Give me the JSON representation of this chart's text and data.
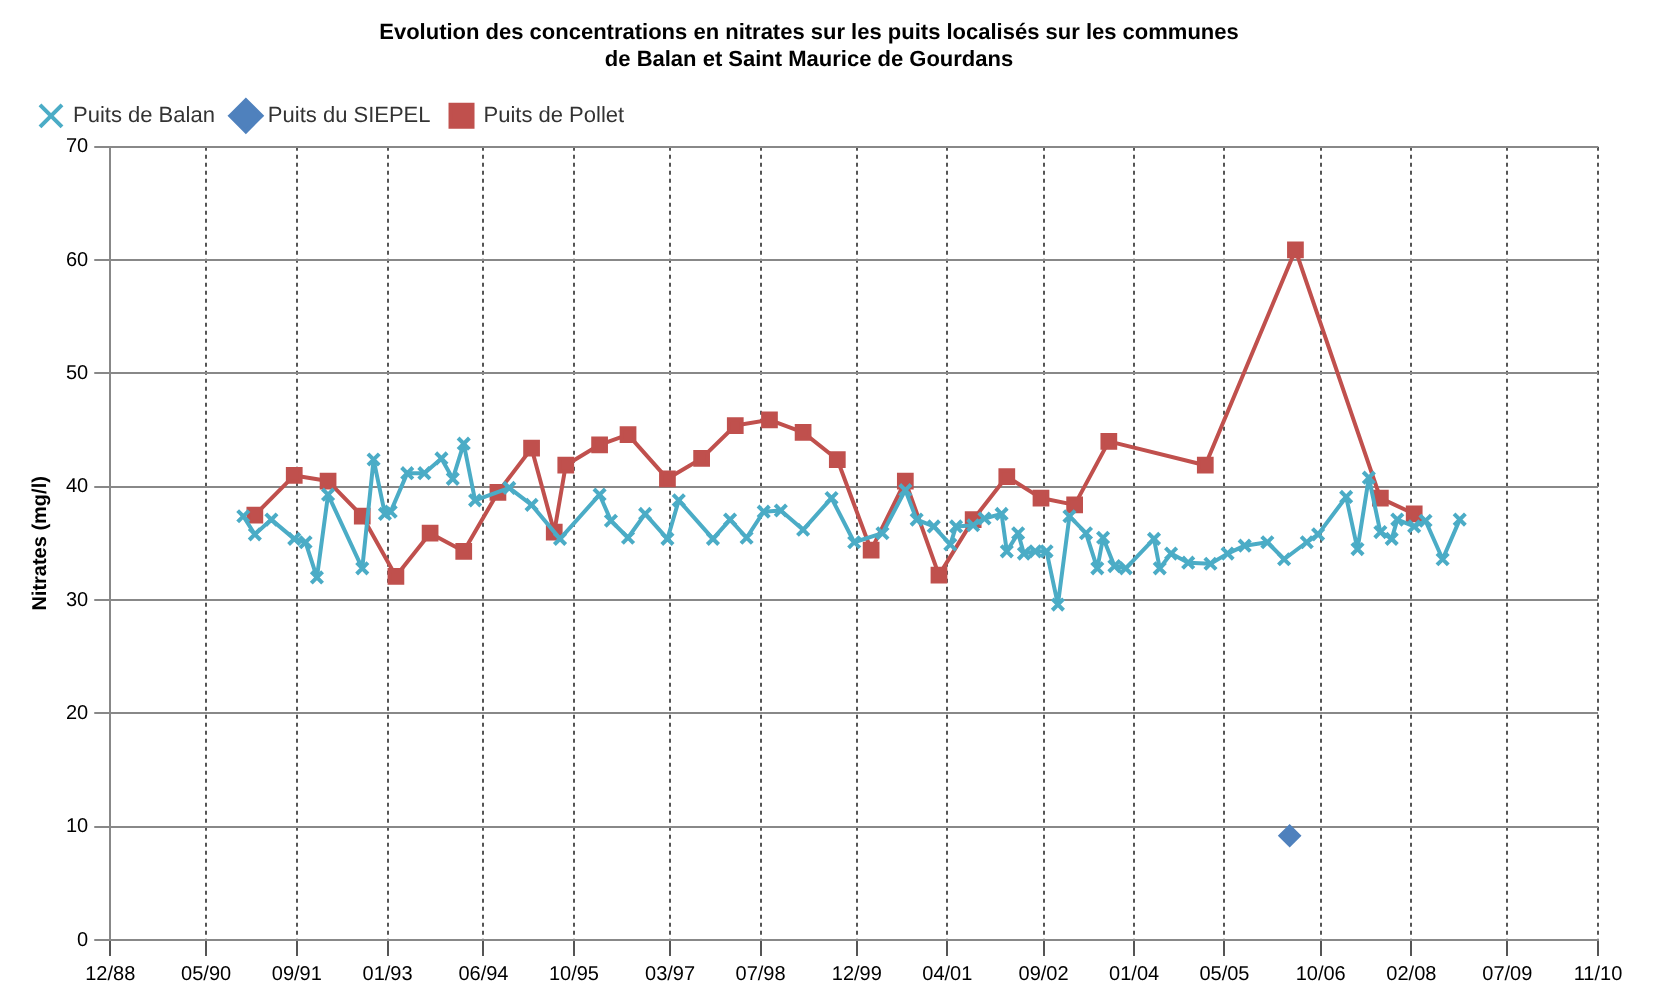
{
  "chart_data": {
    "type": "line",
    "title": "Evolution des concentrations en nitrates sur les puits localisés sur les communes\nde Balan et Saint Maurice de Gourdans",
    "ylabel": "Nitrates (mg/l)",
    "xlim": [
      "1988-12-15",
      "2010-11-15"
    ],
    "xticks": [
      {
        "value": "1988-12-15",
        "label": "12/88"
      },
      {
        "value": "1990-05-15",
        "label": "05/90"
      },
      {
        "value": "1991-09-15",
        "label": "09/91"
      },
      {
        "value": "1993-01-15",
        "label": "01/93"
      },
      {
        "value": "1994-06-15",
        "label": "06/94"
      },
      {
        "value": "1995-10-15",
        "label": "10/95"
      },
      {
        "value": "1997-03-15",
        "label": "03/97"
      },
      {
        "value": "1998-07-15",
        "label": "07/98"
      },
      {
        "value": "1999-12-15",
        "label": "12/99"
      },
      {
        "value": "2001-04-15",
        "label": "04/01"
      },
      {
        "value": "2002-09-15",
        "label": "09/02"
      },
      {
        "value": "2004-01-15",
        "label": "01/04"
      },
      {
        "value": "2005-05-15",
        "label": "05/05"
      },
      {
        "value": "2006-10-15",
        "label": "10/06"
      },
      {
        "value": "2008-02-15",
        "label": "02/08"
      },
      {
        "value": "2009-07-15",
        "label": "07/09"
      },
      {
        "value": "2010-11-15",
        "label": "11/10"
      }
    ],
    "ylim": [
      0,
      70
    ],
    "yticks": [
      0,
      10,
      20,
      30,
      40,
      50,
      60,
      70
    ],
    "grid": true,
    "legend": "top left",
    "series": [
      {
        "name": "Puits de Balan",
        "color": "#4bacc6",
        "marker": "cross",
        "x": [
          "1990-12",
          "1991-02",
          "1991-05",
          "1991-09",
          "1991-11",
          "1992-01",
          "1992-03",
          "1992-09",
          "1992-11",
          "1993-01",
          "1993-02",
          "1993-05",
          "1993-08",
          "1993-11",
          "1994-01",
          "1994-03",
          "1994-05",
          "1994-11",
          "1995-03",
          "1995-08",
          "1996-03",
          "1996-05",
          "1996-08",
          "1996-11",
          "1997-03",
          "1997-05",
          "1997-11",
          "1998-02",
          "1998-05",
          "1998-08",
          "1998-11",
          "1999-03",
          "1999-08",
          "1999-12",
          "2000-05",
          "2000-09",
          "2000-11",
          "2001-02",
          "2001-05",
          "2001-06",
          "2001-09",
          "2001-11",
          "2002-02",
          "2002-03",
          "2002-05",
          "2002-06",
          "2002-08",
          "2002-10",
          "2002-12",
          "2003-02",
          "2003-05",
          "2003-07",
          "2003-08",
          "2003-10",
          "2003-12",
          "2004-05",
          "2004-06",
          "2004-08",
          "2004-11",
          "2005-03",
          "2005-06",
          "2005-09",
          "2006-01",
          "2006-04",
          "2006-08",
          "2006-10",
          "2007-03",
          "2007-05",
          "2007-07",
          "2007-09",
          "2007-11",
          "2007-12",
          "2008-03",
          "2008-05",
          "2008-08",
          "2008-11"
        ],
        "values": [
          37.4,
          35.8,
          37.1,
          35.4,
          35.1,
          32.0,
          39.3,
          32.8,
          42.4,
          37.6,
          37.8,
          41.2,
          41.2,
          42.5,
          40.7,
          43.8,
          38.8,
          39.9,
          38.4,
          35.4,
          39.3,
          37.0,
          35.5,
          37.6,
          35.4,
          38.8,
          35.4,
          37.1,
          35.5,
          37.8,
          37.9,
          36.2,
          39.0,
          35.1,
          35.9,
          39.7,
          37.1,
          36.5,
          34.9,
          36.5,
          36.6,
          37.2,
          37.6,
          34.3,
          35.9,
          34.1,
          34.3,
          34.3,
          29.6,
          37.4,
          35.9,
          32.8,
          35.5,
          33.0,
          32.8,
          35.4,
          32.8,
          34.1,
          33.3,
          33.2,
          34.1,
          34.8,
          35.1,
          33.6,
          35.1,
          35.8,
          39.1,
          34.5,
          40.8,
          36.0,
          35.4,
          37.1,
          36.5,
          37.0,
          33.6,
          37.1
        ]
      },
      {
        "name": "Puits du SIEPEL",
        "color": "#4f81bd",
        "marker": "diamond",
        "x": [
          "2006-05"
        ],
        "values": [
          9.2
        ]
      },
      {
        "name": "Puits de Pollet",
        "color": "#c0504d",
        "marker": "square",
        "x": [
          "1991-02",
          "1991-09",
          "1992-03",
          "1992-09",
          "1993-03",
          "1993-09",
          "1994-03",
          "1994-09",
          "1995-03",
          "1995-07",
          "1995-09",
          "1996-03",
          "1996-08",
          "1997-03",
          "1997-09",
          "1998-03",
          "1998-09",
          "1999-03",
          "1999-09",
          "2000-03",
          "2000-09",
          "2001-03",
          "2001-09",
          "2002-03",
          "2002-09",
          "2003-03",
          "2003-09",
          "2005-02",
          "2006-06",
          "2007-09",
          "2008-03"
        ],
        "values": [
          37.5,
          41.0,
          40.5,
          37.4,
          32.1,
          35.9,
          34.3,
          39.5,
          43.4,
          36.0,
          41.9,
          43.7,
          44.6,
          40.7,
          42.5,
          45.4,
          45.9,
          44.8,
          42.4,
          34.4,
          40.5,
          32.2,
          37.1,
          40.9,
          39.0,
          38.4,
          44.0,
          41.9,
          60.9,
          39.0,
          37.6
        ]
      }
    ]
  }
}
